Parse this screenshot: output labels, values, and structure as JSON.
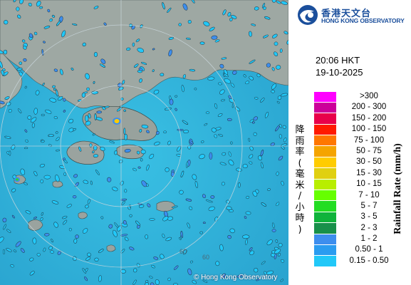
{
  "logo": {
    "name_cn": "香港天文台",
    "name_en": "HONG KONG OBSERVATORY",
    "icon": "hko-logo-icon"
  },
  "timestamp": {
    "time": "20:06 HKT",
    "date": "19-10-2025"
  },
  "legend": {
    "axis_label_en": "Rainfall Rate (mm/h)",
    "axis_label_cn": [
      "降",
      "雨",
      "率",
      "(",
      "毫",
      "米",
      "/",
      "小",
      "時",
      ")"
    ],
    "items": [
      {
        "label": ">300",
        "color": "#ff00ff"
      },
      {
        "label": "200 - 300",
        "color": "#cc0099"
      },
      {
        "label": "150 - 200",
        "color": "#e8004a"
      },
      {
        "label": "100 - 150",
        "color": "#ff1a00"
      },
      {
        "label": "75 - 100",
        "color": "#ff7700"
      },
      {
        "label": "50 - 75",
        "color": "#f5a400"
      },
      {
        "label": "30 - 50",
        "color": "#ffcc00"
      },
      {
        "label": "15 - 30",
        "color": "#e0d010"
      },
      {
        "label": "10 - 15",
        "color": "#b8ee00"
      },
      {
        "label": "7 - 10",
        "color": "#66ff00"
      },
      {
        "label": "5 - 7",
        "color": "#22dd22"
      },
      {
        "label": "3 - 5",
        "color": "#0fb33b"
      },
      {
        "label": "2 - 3",
        "color": "#18904a"
      },
      {
        "label": "1 - 2",
        "color": "#3d8eee"
      },
      {
        "label": "0.50 - 1",
        "color": "#2a9cf0"
      },
      {
        "label": "0.15 - 0.50",
        "color": "#22c8f8"
      }
    ]
  },
  "map": {
    "range_rings": [
      "60",
      "60"
    ],
    "copyright": "© Hong Kong Observatory",
    "colors": {
      "sea": "#2fb6dc",
      "land": "#9aa5a0",
      "light_rain": "#22c8f8",
      "moderate_rain": "#3d8eee"
    }
  }
}
